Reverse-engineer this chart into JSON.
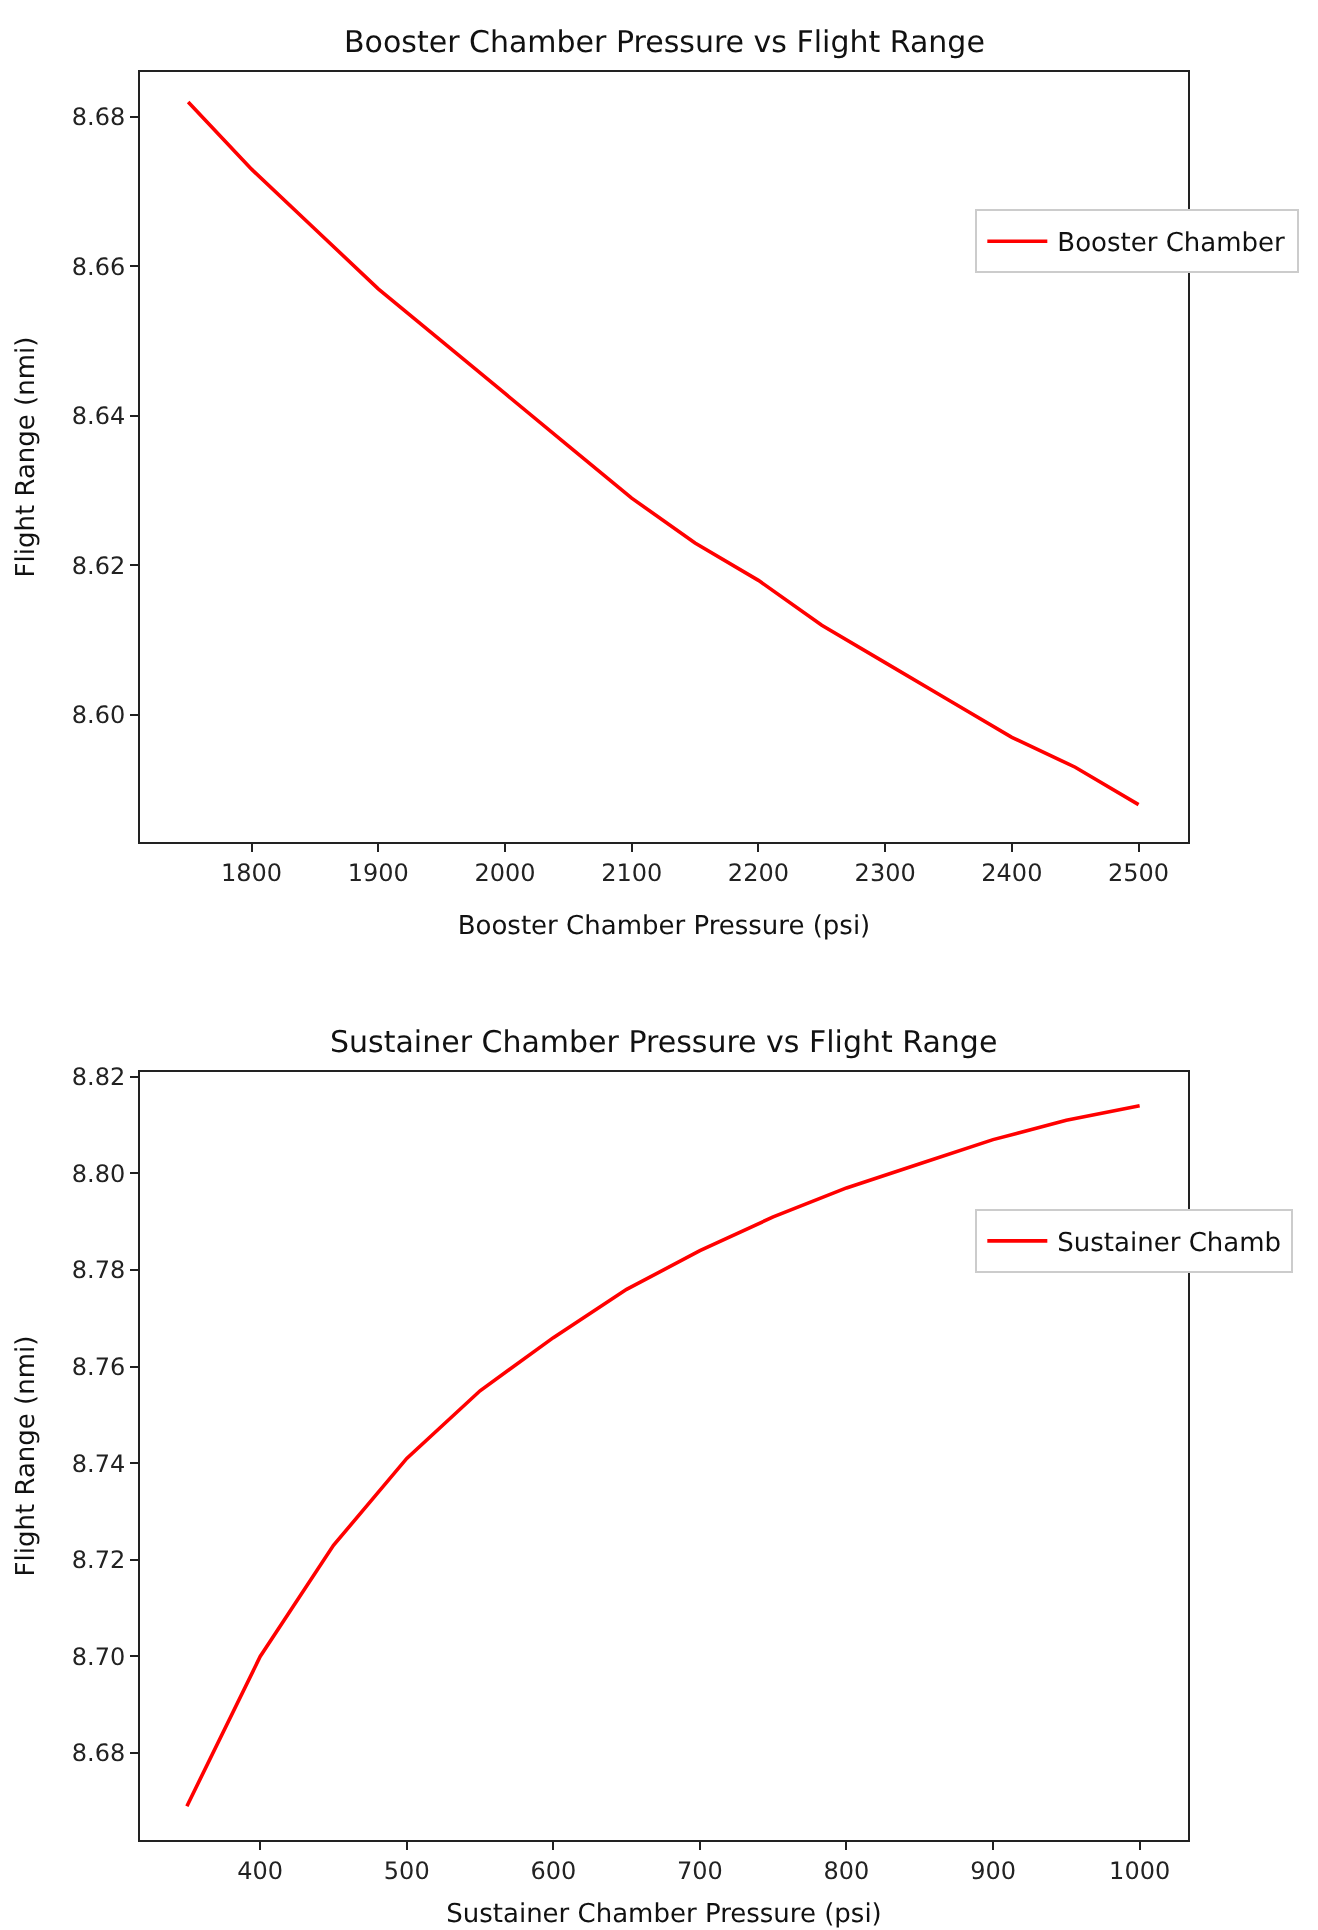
{
  "chart_data": [
    {
      "type": "line",
      "title": "Booster Chamber Pressure vs Flight Range",
      "xlabel": "Booster Chamber Pressure (psi)",
      "ylabel": "Flight Range (nmi)",
      "x": [
        1750,
        1800,
        1850,
        1900,
        1950,
        2000,
        2050,
        2100,
        2150,
        2200,
        2250,
        2300,
        2350,
        2400,
        2450,
        2500
      ],
      "series": [
        {
          "name": "Booster Chamber",
          "color": "#ff0000",
          "values": [
            8.682,
            8.673,
            8.665,
            8.657,
            8.65,
            8.643,
            8.636,
            8.629,
            8.623,
            8.618,
            8.612,
            8.607,
            8.602,
            8.597,
            8.593,
            8.588
          ]
        }
      ],
      "xlim": [
        1712,
        2539
      ],
      "xticks": [
        1800,
        1900,
        2000,
        2100,
        2200,
        2300,
        2400,
        2500
      ],
      "ylim": [
        8.583,
        8.686
      ],
      "yticks": [
        {
          "value": 8.6,
          "label": "8.60"
        },
        8.62,
        8.64,
        8.66,
        8.68
      ],
      "legend": "right"
    },
    {
      "type": "line",
      "title": "Sustainer Chamber Pressure vs Flight Range",
      "xlabel": "Sustainer Chamber Pressure (psi)",
      "ylabel": "Flight Range (nmi)",
      "x": [
        350,
        400,
        450,
        500,
        550,
        600,
        650,
        700,
        750,
        800,
        850,
        900,
        950,
        1000
      ],
      "series": [
        {
          "name": "Sustainer Chamb",
          "color": "#ff0000",
          "values": [
            8.669,
            8.7,
            8.723,
            8.741,
            8.755,
            8.766,
            8.776,
            8.784,
            8.791,
            8.797,
            8.802,
            8.807,
            8.811,
            8.814
          ]
        }
      ],
      "xlim": [
        318,
        1033
      ],
      "xticks": [
        400,
        500,
        600,
        700,
        800,
        900,
        1000
      ],
      "ylim": [
        8.662,
        8.821
      ],
      "yticks": [
        8.68,
        {
          "value": 8.7,
          "label": "8.70"
        },
        8.72,
        8.74,
        8.76,
        8.78,
        {
          "value": 8.8,
          "label": "8.80"
        },
        8.82
      ],
      "legend": "right"
    }
  ]
}
